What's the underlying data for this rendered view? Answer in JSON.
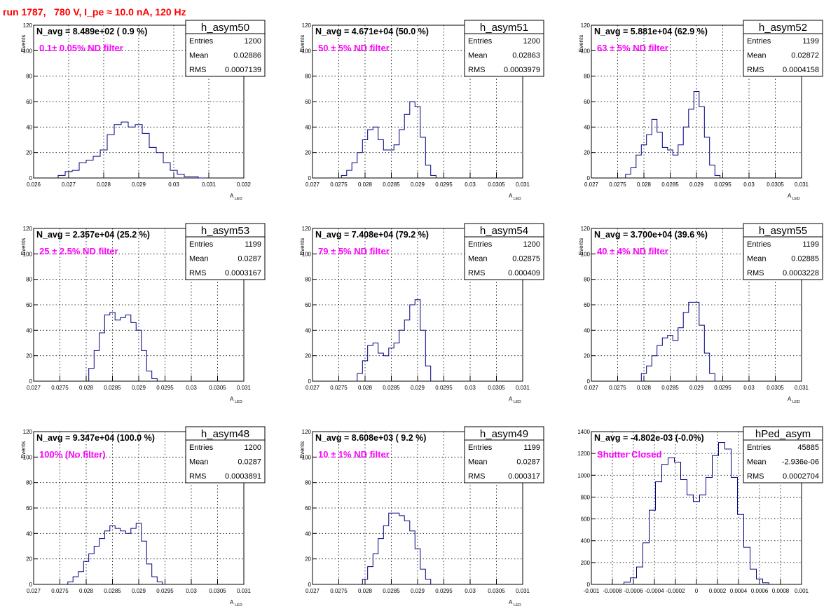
{
  "run_title": "run 1787,   780 V, I_pe ≈ 10.0 nA, 120 Hz",
  "colors": {
    "histogram": "#000080",
    "run_title": "#ff0000",
    "filter_label": "#ff00ff"
  },
  "chart_data": [
    {
      "type": "bar",
      "ylabel": "Events",
      "xlabel": "A",
      "xlabel_sub": "LED",
      "xlim": [
        0.026,
        0.032
      ],
      "ylim": [
        0,
        120
      ],
      "xticks": [
        "0.026",
        "0.027",
        "0.028",
        "0.029",
        "0.03",
        "0.031",
        "0.032"
      ],
      "yticks": [
        "0",
        "20",
        "40",
        "60",
        "80",
        "100",
        "120"
      ],
      "grid": true,
      "n_avg": "N_avg = 8.489e+02 ( 0.9 %)",
      "filter_label": "0.1± 0.05% ND filter",
      "stats": {
        "name": "h_asym50",
        "entries": "1200",
        "mean": "0.02886",
        "rms": "0.0007139"
      },
      "x": [
        0.0268,
        0.027,
        0.0272,
        0.0274,
        0.0276,
        0.0278,
        0.028,
        0.0282,
        0.0284,
        0.0286,
        0.0288,
        0.029,
        0.0292,
        0.0294,
        0.0296,
        0.0298,
        0.03,
        0.0302,
        0.0304,
        0.0306,
        0.0308
      ],
      "values": [
        2,
        5,
        6,
        12,
        14,
        17,
        22,
        34,
        42,
        44,
        40,
        42,
        35,
        24,
        20,
        12,
        6,
        3,
        1,
        1,
        0
      ]
    },
    {
      "type": "bar",
      "ylabel": "Events",
      "xlabel": "A",
      "xlabel_sub": "LED",
      "xlim": [
        0.027,
        0.031
      ],
      "ylim": [
        0,
        120
      ],
      "xticks": [
        "0.027",
        "0.0275",
        "0.028",
        "0.0285",
        "0.029",
        "0.0295",
        "0.03",
        "0.0305",
        "0.031"
      ],
      "yticks": [
        "0",
        "20",
        "40",
        "60",
        "80",
        "100",
        "120"
      ],
      "grid": true,
      "n_avg": "N_avg = 4.671e+04 (50.0 %)",
      "filter_label": "50 ± 5% ND filter",
      "stats": {
        "name": "h_asym51",
        "entries": "1200",
        "mean": "0.02863",
        "rms": "0.0003979"
      },
      "x": [
        0.0276,
        0.0277,
        0.0278,
        0.0279,
        0.028,
        0.0281,
        0.0282,
        0.0283,
        0.0284,
        0.0285,
        0.0286,
        0.0287,
        0.0288,
        0.0289,
        0.029,
        0.0291,
        0.0292,
        0.0293
      ],
      "values": [
        2,
        6,
        12,
        20,
        30,
        38,
        40,
        30,
        22,
        22,
        26,
        38,
        50,
        60,
        56,
        32,
        10,
        2
      ]
    },
    {
      "type": "bar",
      "ylabel": "Events",
      "xlabel": "A",
      "xlabel_sub": "LED",
      "xlim": [
        0.027,
        0.031
      ],
      "ylim": [
        0,
        120
      ],
      "xticks": [
        "0.027",
        "0.0275",
        "0.028",
        "0.0285",
        "0.029",
        "0.0295",
        "0.03",
        "0.0305",
        "0.031"
      ],
      "yticks": [
        "0",
        "20",
        "40",
        "60",
        "80",
        "100",
        "120"
      ],
      "grid": true,
      "n_avg": "N_avg = 5.881e+04 (62.9 %)",
      "filter_label": "63 ± 5% ND filter",
      "stats": {
        "name": "h_asym52",
        "entries": "1199",
        "mean": "0.02872",
        "rms": "0.0004158"
      },
      "x": [
        0.0277,
        0.0278,
        0.0279,
        0.028,
        0.0281,
        0.0282,
        0.0283,
        0.0284,
        0.0285,
        0.0286,
        0.0287,
        0.0288,
        0.0289,
        0.029,
        0.0291,
        0.0292,
        0.0293,
        0.0294
      ],
      "values": [
        3,
        8,
        18,
        26,
        34,
        46,
        36,
        24,
        22,
        18,
        26,
        40,
        54,
        68,
        56,
        32,
        10,
        2
      ]
    },
    {
      "type": "bar",
      "ylabel": "Events",
      "xlabel": "A",
      "xlabel_sub": "LED",
      "xlim": [
        0.027,
        0.031
      ],
      "ylim": [
        0,
        120
      ],
      "xticks": [
        "0.027",
        "0.0275",
        "0.028",
        "0.0285",
        "0.029",
        "0.0295",
        "0.03",
        "0.0305",
        "0.031"
      ],
      "yticks": [
        "0",
        "20",
        "40",
        "60",
        "80",
        "100",
        "120"
      ],
      "grid": true,
      "n_avg": "N_avg = 2.357e+04 (25.2 %)",
      "filter_label": "25 ± 2.5% ND filter",
      "stats": {
        "name": "h_asym53",
        "entries": "1199",
        "mean": "0.0287",
        "rms": "0.0003167"
      },
      "x": [
        0.0281,
        0.0282,
        0.0283,
        0.0284,
        0.0285,
        0.0286,
        0.0287,
        0.0288,
        0.0289,
        0.029,
        0.0291,
        0.0292,
        0.0293
      ],
      "values": [
        10,
        24,
        38,
        52,
        54,
        48,
        50,
        52,
        46,
        40,
        24,
        8,
        2
      ]
    },
    {
      "type": "bar",
      "ylabel": "Events",
      "xlabel": "A",
      "xlabel_sub": "LED",
      "xlim": [
        0.027,
        0.031
      ],
      "ylim": [
        0,
        120
      ],
      "xticks": [
        "0.027",
        "0.0275",
        "0.028",
        "0.0285",
        "0.029",
        "0.0295",
        "0.03",
        "0.0305",
        "0.031"
      ],
      "yticks": [
        "0",
        "20",
        "40",
        "60",
        "80",
        "100",
        "120"
      ],
      "grid": true,
      "n_avg": "N_avg = 7.408e+04 (79.2 %)",
      "filter_label": "79 ± 5% ND filter",
      "stats": {
        "name": "h_asym54",
        "entries": "1200",
        "mean": "0.02875",
        "rms": "0.000409"
      },
      "x": [
        0.0279,
        0.028,
        0.0281,
        0.0282,
        0.0283,
        0.0284,
        0.0285,
        0.0286,
        0.0287,
        0.0288,
        0.0289,
        0.029,
        0.0291,
        0.0292
      ],
      "values": [
        6,
        16,
        28,
        30,
        22,
        20,
        26,
        30,
        40,
        48,
        60,
        64,
        40,
        12
      ]
    },
    {
      "type": "bar",
      "ylabel": "Events",
      "xlabel": "A",
      "xlabel_sub": "LED",
      "xlim": [
        0.027,
        0.031
      ],
      "ylim": [
        0,
        120
      ],
      "xticks": [
        "0.027",
        "0.0275",
        "0.028",
        "0.0285",
        "0.029",
        "0.0295",
        "0.03",
        "0.0305",
        "0.031"
      ],
      "yticks": [
        "0",
        "20",
        "40",
        "60",
        "80",
        "100",
        "120"
      ],
      "grid": true,
      "n_avg": "N_avg = 3.700e+04 (39.6 %)",
      "filter_label": "40 ± 4% ND filter",
      "stats": {
        "name": "h_asym55",
        "entries": "1199",
        "mean": "0.02885",
        "rms": "0.0003228"
      },
      "x": [
        0.028,
        0.0281,
        0.0282,
        0.0283,
        0.0284,
        0.0285,
        0.0286,
        0.0287,
        0.0288,
        0.0289,
        0.029,
        0.0291,
        0.0292,
        0.0293
      ],
      "values": [
        6,
        12,
        20,
        28,
        34,
        36,
        32,
        42,
        54,
        62,
        62,
        44,
        22,
        6
      ]
    },
    {
      "type": "bar",
      "ylabel": "Events",
      "xlabel": "A",
      "xlabel_sub": "LED",
      "xlim": [
        0.027,
        0.031
      ],
      "ylim": [
        0,
        120
      ],
      "xticks": [
        "0.027",
        "0.0275",
        "0.028",
        "0.0285",
        "0.029",
        "0.0295",
        "0.03",
        "0.0305",
        "0.031"
      ],
      "yticks": [
        "0",
        "20",
        "40",
        "60",
        "80",
        "100",
        "120"
      ],
      "grid": true,
      "n_avg": "N_avg = 9.347e+04 (100.0 %)",
      "filter_label": "100% (No filter)",
      "stats": {
        "name": "h_asym48",
        "entries": "1200",
        "mean": "0.0287",
        "rms": "0.0003891"
      },
      "x": [
        0.0277,
        0.0278,
        0.0279,
        0.028,
        0.0281,
        0.0282,
        0.0283,
        0.0284,
        0.0285,
        0.0286,
        0.0287,
        0.0288,
        0.0289,
        0.029,
        0.0291,
        0.0292,
        0.0293,
        0.0294
      ],
      "values": [
        2,
        6,
        10,
        18,
        24,
        30,
        36,
        42,
        46,
        44,
        42,
        40,
        44,
        48,
        34,
        16,
        6,
        2
      ]
    },
    {
      "type": "bar",
      "ylabel": "Events",
      "xlabel": "A",
      "xlabel_sub": "LED",
      "xlim": [
        0.027,
        0.031
      ],
      "ylim": [
        0,
        120
      ],
      "xticks": [
        "0.027",
        "0.0275",
        "0.028",
        "0.0285",
        "0.029",
        "0.0295",
        "0.03",
        "0.0305",
        "0.031"
      ],
      "yticks": [
        "0",
        "20",
        "40",
        "60",
        "80",
        "100",
        "120"
      ],
      "grid": true,
      "n_avg": "N_avg = 8.608e+03 ( 9.2 %)",
      "filter_label": "10 ± 1% ND filter",
      "stats": {
        "name": "h_asym49",
        "entries": "1199",
        "mean": "0.0287",
        "rms": "0.000317"
      },
      "x": [
        0.028,
        0.0281,
        0.0282,
        0.0283,
        0.0284,
        0.0285,
        0.0286,
        0.0287,
        0.0288,
        0.0289,
        0.029,
        0.0291,
        0.0292
      ],
      "values": [
        4,
        14,
        24,
        36,
        46,
        56,
        56,
        54,
        50,
        42,
        28,
        12,
        4
      ]
    },
    {
      "type": "bar",
      "ylabel": "",
      "xlabel": "",
      "xlabel_sub": "",
      "xlim": [
        -0.001,
        0.001
      ],
      "ylim": [
        0,
        1400
      ],
      "xticks": [
        "-0.001",
        "-0.0008",
        "-0.0006",
        "-0.0004",
        "-0.0002",
        "0",
        "0.0002",
        "0.0004",
        "0.0006",
        "0.0008",
        "0.001"
      ],
      "yticks": [
        "0",
        "200",
        "400",
        "600",
        "800",
        "1000",
        "1200",
        "1400"
      ],
      "grid": true,
      "n_avg": "N_avg = -4.802e-03 (-0.0%)",
      "filter_label": "Shutter Closed",
      "stats": {
        "name": "hPed_asym",
        "entries": "45885",
        "mean": "-2.936e-06",
        "rms": "0.0002704"
      },
      "x": [
        -0.00066,
        -0.0006,
        -0.00054,
        -0.00048,
        -0.00042,
        -0.00036,
        -0.0003,
        -0.00024,
        -0.00018,
        -0.00012,
        -6e-05,
        0.0,
        6e-05,
        0.00012,
        0.00018,
        0.00024,
        0.0003,
        0.00036,
        0.00042,
        0.00048,
        0.00054,
        0.0006,
        0.00066
      ],
      "values": [
        20,
        60,
        160,
        380,
        680,
        940,
        1100,
        1160,
        1120,
        960,
        820,
        760,
        820,
        980,
        1180,
        1300,
        1240,
        980,
        640,
        340,
        140,
        50,
        15
      ]
    }
  ]
}
